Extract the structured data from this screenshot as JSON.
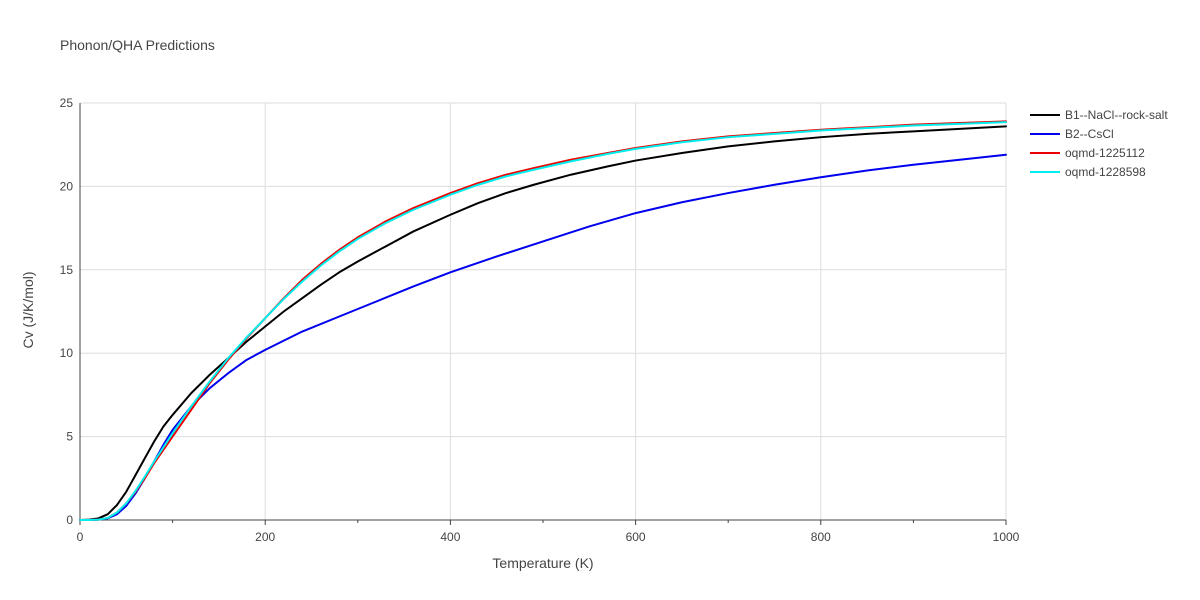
{
  "chart_data": {
    "type": "line",
    "title": "Phonon/QHA Predictions",
    "xlabel": "Temperature (K)",
    "ylabel": "Cv (J/K/mol)",
    "xlim": [
      0,
      1000
    ],
    "ylim": [
      0,
      25
    ],
    "xticks": [
      0,
      200,
      400,
      600,
      800,
      1000
    ],
    "yticks": [
      0,
      5,
      10,
      15,
      20,
      25
    ],
    "grid": true,
    "legend_position": "top-right",
    "series": [
      {
        "name": "B1--NaCl--rock-salt",
        "color": "#000000",
        "x": [
          0,
          10,
          20,
          30,
          40,
          50,
          60,
          70,
          80,
          90,
          100,
          120,
          140,
          160,
          180,
          200,
          220,
          240,
          260,
          280,
          300,
          330,
          360,
          400,
          430,
          460,
          490,
          530,
          570,
          600,
          650,
          700,
          750,
          800,
          850,
          900,
          950,
          1000
        ],
        "y": [
          0,
          0.02,
          0.1,
          0.35,
          0.9,
          1.7,
          2.7,
          3.7,
          4.7,
          5.6,
          6.3,
          7.6,
          8.7,
          9.7,
          10.7,
          11.6,
          12.5,
          13.3,
          14.1,
          14.85,
          15.5,
          16.4,
          17.3,
          18.3,
          19.0,
          19.6,
          20.1,
          20.7,
          21.2,
          21.55,
          22.0,
          22.4,
          22.7,
          22.95,
          23.15,
          23.3,
          23.45,
          23.6
        ]
      },
      {
        "name": "B2--CsCl",
        "color": "#0000ee",
        "x": [
          0,
          10,
          20,
          30,
          40,
          50,
          60,
          70,
          80,
          90,
          100,
          120,
          140,
          160,
          180,
          200,
          240,
          280,
          320,
          360,
          400,
          450,
          500,
          550,
          600,
          650,
          700,
          750,
          800,
          850,
          900,
          950,
          1000
        ],
        "y": [
          0,
          0.0,
          0.02,
          0.1,
          0.35,
          0.85,
          1.6,
          2.5,
          3.5,
          4.5,
          5.4,
          6.8,
          7.9,
          8.8,
          9.6,
          10.2,
          11.3,
          12.2,
          13.1,
          14.0,
          14.85,
          15.8,
          16.7,
          17.6,
          18.4,
          19.05,
          19.6,
          20.1,
          20.55,
          20.95,
          21.3,
          21.6,
          21.9
        ]
      },
      {
        "name": "oqmd-1225112",
        "color": "#ee0000",
        "x": [
          0,
          10,
          20,
          30,
          40,
          50,
          60,
          70,
          80,
          90,
          100,
          120,
          140,
          160,
          180,
          200,
          220,
          240,
          260,
          280,
          300,
          330,
          360,
          400,
          430,
          460,
          490,
          530,
          570,
          600,
          650,
          700,
          750,
          800,
          850,
          900,
          950,
          1000
        ],
        "y": [
          0,
          0.0,
          0.02,
          0.12,
          0.45,
          1.0,
          1.7,
          2.5,
          3.4,
          4.2,
          5.0,
          6.6,
          8.2,
          9.6,
          10.9,
          12.1,
          13.3,
          14.4,
          15.35,
          16.2,
          16.95,
          17.9,
          18.7,
          19.6,
          20.2,
          20.7,
          21.1,
          21.6,
          22.0,
          22.3,
          22.7,
          23.0,
          23.2,
          23.4,
          23.55,
          23.7,
          23.8,
          23.9
        ]
      },
      {
        "name": "oqmd-1228598",
        "color": "#00eeee",
        "x": [
          0,
          10,
          20,
          30,
          40,
          50,
          60,
          70,
          80,
          90,
          100,
          120,
          140,
          160,
          180,
          200,
          220,
          240,
          260,
          280,
          300,
          330,
          360,
          400,
          430,
          460,
          490,
          530,
          570,
          600,
          650,
          700,
          750,
          800,
          850,
          900,
          950,
          1000
        ],
        "y": [
          0,
          0.0,
          0.02,
          0.12,
          0.45,
          1.0,
          1.75,
          2.6,
          3.5,
          4.35,
          5.2,
          6.8,
          8.3,
          9.7,
          10.95,
          12.1,
          13.25,
          14.3,
          15.25,
          16.1,
          16.85,
          17.8,
          18.6,
          19.5,
          20.1,
          20.6,
          21.0,
          21.5,
          21.95,
          22.25,
          22.65,
          22.95,
          23.15,
          23.35,
          23.5,
          23.65,
          23.75,
          23.85
        ]
      }
    ]
  }
}
